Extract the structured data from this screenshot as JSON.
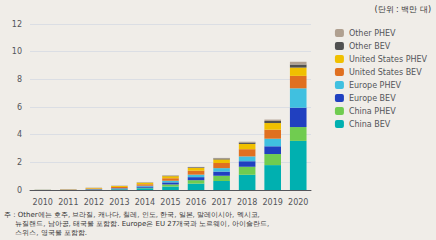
{
  "chart_data": {
    "type": "bar",
    "stacked": true,
    "categories": [
      "2010",
      "2011",
      "2012",
      "2013",
      "2014",
      "2015",
      "2016",
      "2017",
      "2018",
      "2019",
      "2020"
    ],
    "series": [
      {
        "name": "China BEV",
        "color": "#00B0B0",
        "values": [
          0.01,
          0.01,
          0.02,
          0.05,
          0.12,
          0.25,
          0.46,
          0.65,
          1.1,
          1.8,
          3.55
        ]
      },
      {
        "name": "China PHEV",
        "color": "#70CC50",
        "values": [
          0.0,
          0.0,
          0.0,
          0.01,
          0.05,
          0.15,
          0.25,
          0.38,
          0.58,
          0.8,
          1.0
        ]
      },
      {
        "name": "Europe BEV",
        "color": "#2040C0",
        "values": [
          0.0,
          0.01,
          0.03,
          0.05,
          0.08,
          0.15,
          0.22,
          0.3,
          0.4,
          0.56,
          1.4
        ]
      },
      {
        "name": "Europe PHEV",
        "color": "#40C0E0",
        "values": [
          0.0,
          0.0,
          0.01,
          0.02,
          0.05,
          0.12,
          0.18,
          0.25,
          0.35,
          0.55,
          1.4
        ]
      },
      {
        "name": "United States BEV",
        "color": "#E07020",
        "values": [
          0.01,
          0.02,
          0.05,
          0.09,
          0.12,
          0.18,
          0.28,
          0.37,
          0.52,
          0.65,
          0.9
        ]
      },
      {
        "name": "United States PHEV",
        "color": "#F0C000",
        "values": [
          0.0,
          0.01,
          0.04,
          0.07,
          0.1,
          0.15,
          0.2,
          0.26,
          0.38,
          0.48,
          0.6
        ]
      },
      {
        "name": "Other BEV",
        "color": "#505050",
        "values": [
          0.0,
          0.0,
          0.01,
          0.01,
          0.02,
          0.03,
          0.05,
          0.07,
          0.1,
          0.15,
          0.22
        ]
      },
      {
        "name": "Other PHEV",
        "color": "#B0A090",
        "values": [
          0.0,
          0.0,
          0.0,
          0.01,
          0.01,
          0.02,
          0.03,
          0.04,
          0.06,
          0.1,
          0.2
        ]
      }
    ],
    "legend_order": [
      "Other PHEV",
      "Other BEV",
      "United States PHEV",
      "United States BEV",
      "Europe PHEV",
      "Europe BEV",
      "China PHEV",
      "China BEV"
    ],
    "legend": "right",
    "ylim": [
      0,
      12
    ],
    "yticks": [
      0,
      2,
      4,
      6,
      8,
      10,
      12
    ],
    "grid": true,
    "annotations": [
      "(단위 : 백만 대)",
      "주 : Other에는 호주, 브라질, 캐나다, 칠레, 인도, 한국, 일본, 말레이시아, 멕시코,",
      "     뉴질랜드, 남아공, 태국을 포함함. Europe은 EU 27개국과 노르웨이, 아이슬란드,",
      "     스위스, 영국을 포함함."
    ]
  }
}
